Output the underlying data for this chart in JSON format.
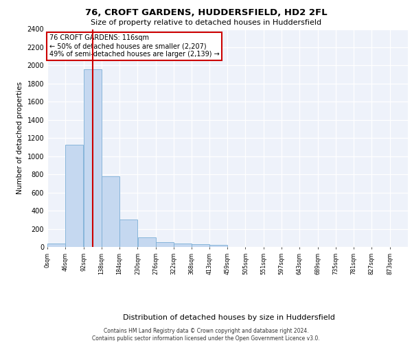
{
  "title_line1": "76, CROFT GARDENS, HUDDERSFIELD, HD2 2FL",
  "title_line2": "Size of property relative to detached houses in Huddersfield",
  "xlabel": "Distribution of detached houses by size in Huddersfield",
  "ylabel": "Number of detached properties",
  "annotation_title": "76 CROFT GARDENS: 116sqm",
  "annotation_line2": "← 50% of detached houses are smaller (2,207)",
  "annotation_line3": "49% of semi-detached houses are larger (2,139) →",
  "property_size": 116,
  "bar_color": "#c5d8f0",
  "bar_edge_color": "#7aaed6",
  "vline_color": "#cc0000",
  "vline_x": 116,
  "annotation_box_color": "#cc0000",
  "footer_line1": "Contains HM Land Registry data © Crown copyright and database right 2024.",
  "footer_line2": "Contains public sector information licensed under the Open Government Licence v3.0.",
  "bin_edges": [
    0,
    46,
    92,
    138,
    184,
    230,
    276,
    322,
    368,
    413,
    459,
    505,
    551,
    597,
    643,
    689,
    735,
    781,
    827,
    873,
    919
  ],
  "bar_heights": [
    35,
    1130,
    1955,
    775,
    300,
    105,
    50,
    40,
    30,
    20,
    0,
    0,
    0,
    0,
    0,
    0,
    0,
    0,
    0,
    0
  ],
  "ylim": [
    0,
    2400
  ],
  "yticks": [
    0,
    200,
    400,
    600,
    800,
    1000,
    1200,
    1400,
    1600,
    1800,
    2000,
    2200,
    2400
  ],
  "background_color": "#eef2fa",
  "plot_bg_color": "#eef2fa"
}
